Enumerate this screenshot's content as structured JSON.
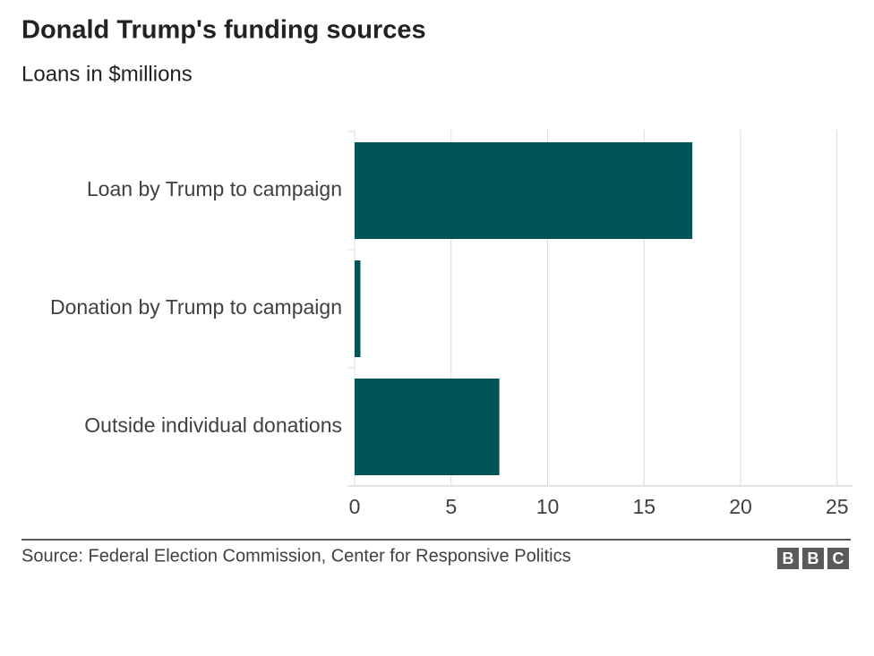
{
  "chart_data": {
    "type": "bar",
    "orientation": "horizontal",
    "title": "Donald Trump's funding sources",
    "subtitle": "Loans in $millions",
    "categories": [
      "Loan by Trump to campaign",
      "Donation by Trump to campaign",
      "Outside individual donations"
    ],
    "values": [
      17.5,
      0.3,
      7.5
    ],
    "color": "#005456",
    "xlim": [
      0,
      25.8
    ],
    "xticks": [
      0,
      5,
      10,
      15,
      20,
      25
    ],
    "grid": true,
    "source": "Source: Federal Election Commission, Center for Responsive Politics",
    "logo": [
      "B",
      "B",
      "C"
    ]
  }
}
